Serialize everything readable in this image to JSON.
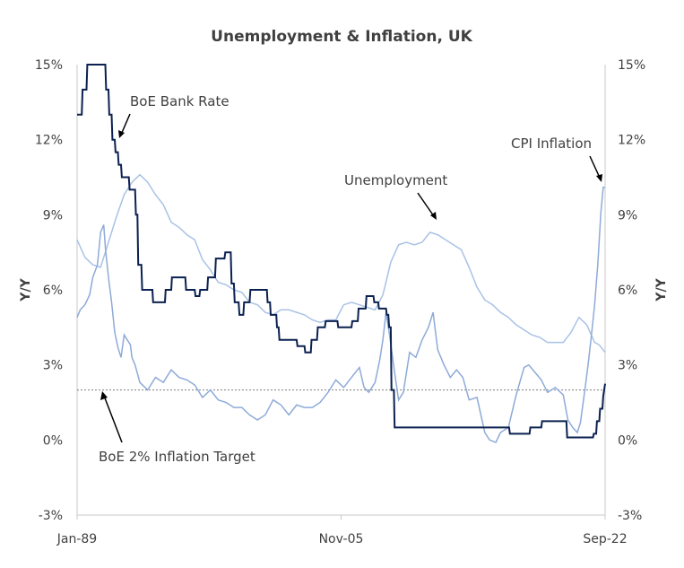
{
  "chart_data": {
    "type": "line",
    "title": "Unemployment & Inflation, UK",
    "ylabel_left": "Y/Y",
    "ylabel_right": "Y/Y",
    "ylim": [
      -3,
      15
    ],
    "yticks": [
      "-3%",
      "0%",
      "3%",
      "6%",
      "9%",
      "12%",
      "15%"
    ],
    "xticks": [
      "Jan-89",
      "Nov-05",
      "Sep-22"
    ],
    "xrange": [
      1989.0,
      2022.67
    ],
    "grid": false,
    "colors": {
      "bank_rate": "#0b2150",
      "cpi": "#8eaad8",
      "unemployment": "#a9c2e6",
      "target": "#7f7f7f",
      "axis": "#c8c8c8"
    },
    "annotations": [
      {
        "id": "bank_rate",
        "text": "BoE Bank Rate"
      },
      {
        "id": "cpi",
        "text": "CPI Inflation"
      },
      {
        "id": "unemployment",
        "text": "Unemployment"
      },
      {
        "id": "target",
        "text": "BoE 2% Inflation Target"
      }
    ],
    "series": [
      {
        "id": "bank_rate",
        "x": [
          1989.0,
          1989.3,
          1989.35,
          1989.6,
          1989.65,
          1989.9,
          1989.95,
          1990.8,
          1990.85,
          1991.0,
          1991.05,
          1991.2,
          1991.25,
          1991.4,
          1991.45,
          1991.6,
          1991.65,
          1991.8,
          1991.85,
          1992.3,
          1992.35,
          1992.7,
          1992.75,
          1992.85,
          1992.9,
          1993.1,
          1993.15,
          1993.8,
          1993.85,
          1994.6,
          1994.65,
          1995.0,
          1995.05,
          1995.9,
          1995.95,
          1996.5,
          1996.55,
          1996.8,
          1996.85,
          1997.3,
          1997.35,
          1997.8,
          1997.85,
          1998.4,
          1998.45,
          1998.8,
          1998.85,
          1999.0,
          1999.05,
          1999.3,
          1999.35,
          1999.6,
          1999.65,
          2000.0,
          2000.05,
          2001.1,
          2001.15,
          2001.3,
          2001.35,
          2001.7,
          2001.75,
          2001.85,
          2001.9,
          2003.0,
          2003.05,
          2003.5,
          2003.55,
          2003.9,
          2003.95,
          2004.3,
          2004.35,
          2004.8,
          2004.85,
          2005.6,
          2005.65,
          2006.5,
          2006.55,
          2006.9,
          2006.95,
          2007.4,
          2007.45,
          2007.9,
          2007.95,
          2008.2,
          2008.25,
          2008.7,
          2008.75,
          2008.85,
          2008.9,
          2009.0,
          2009.05,
          2009.2,
          2009.25,
          2016.55,
          2016.6,
          2017.85,
          2017.9,
          2018.6,
          2018.65,
          2020.2,
          2020.25,
          2021.9,
          2021.95,
          2022.1,
          2022.15,
          2022.3,
          2022.35,
          2022.5,
          2022.55,
          2022.67
        ],
        "values": [
          13.0,
          13.0,
          14.0,
          14.0,
          15.0,
          15.0,
          15.0,
          15.0,
          14.0,
          14.0,
          13.0,
          13.0,
          12.0,
          12.0,
          11.5,
          11.5,
          11.0,
          11.0,
          10.5,
          10.5,
          10.0,
          10.0,
          9.0,
          9.0,
          7.0,
          7.0,
          6.0,
          6.0,
          5.5,
          5.5,
          6.0,
          6.0,
          6.5,
          6.5,
          6.0,
          6.0,
          5.75,
          5.75,
          6.0,
          6.0,
          6.5,
          6.5,
          7.25,
          7.25,
          7.5,
          7.5,
          6.25,
          6.25,
          5.5,
          5.5,
          5.0,
          5.0,
          5.5,
          5.5,
          6.0,
          6.0,
          5.5,
          5.5,
          5.0,
          5.0,
          4.5,
          4.5,
          4.0,
          4.0,
          3.75,
          3.75,
          3.5,
          3.5,
          4.0,
          4.0,
          4.5,
          4.5,
          4.75,
          4.75,
          4.5,
          4.5,
          4.75,
          4.75,
          5.25,
          5.25,
          5.75,
          5.75,
          5.5,
          5.5,
          5.25,
          5.25,
          5.0,
          5.0,
          4.5,
          4.5,
          2.0,
          2.0,
          0.5,
          0.5,
          0.25,
          0.25,
          0.5,
          0.5,
          0.75,
          0.75,
          0.1,
          0.1,
          0.25,
          0.25,
          0.75,
          0.75,
          1.25,
          1.25,
          1.75,
          2.25
        ]
      },
      {
        "id": "cpi",
        "x": [
          1989.0,
          1989.2,
          1989.5,
          1989.8,
          1990.0,
          1990.3,
          1990.5,
          1990.7,
          1990.8,
          1991.0,
          1991.2,
          1991.4,
          1991.6,
          1991.8,
          1992.0,
          1992.2,
          1992.4,
          1992.5,
          1992.7,
          1993.0,
          1993.5,
          1994.0,
          1994.5,
          1995.0,
          1995.5,
          1996.0,
          1996.5,
          1997.0,
          1997.5,
          1998.0,
          1998.5,
          1999.0,
          1999.5,
          2000.0,
          2000.5,
          2001.0,
          2001.5,
          2002.0,
          2002.5,
          2003.0,
          2003.5,
          2004.0,
          2004.5,
          2005.0,
          2005.5,
          2006.0,
          2006.5,
          2007.0,
          2007.3,
          2007.6,
          2008.0,
          2008.3,
          2008.5,
          2008.7,
          2008.9,
          2009.2,
          2009.5,
          2009.8,
          2010.2,
          2010.6,
          2011.0,
          2011.4,
          2011.7,
          2012.0,
          2012.4,
          2012.8,
          2013.2,
          2013.6,
          2014.0,
          2014.5,
          2015.0,
          2015.3,
          2015.7,
          2016.0,
          2016.5,
          2017.0,
          2017.5,
          2017.8,
          2018.2,
          2018.6,
          2019.0,
          2019.5,
          2020.0,
          2020.3,
          2020.6,
          2020.9,
          2021.1,
          2021.4,
          2021.6,
          2021.8,
          2022.0,
          2022.2,
          2022.4,
          2022.55,
          2022.67
        ],
        "values": [
          4.9,
          5.2,
          5.4,
          5.8,
          6.5,
          7.0,
          8.3,
          8.6,
          7.7,
          6.5,
          5.5,
          4.3,
          3.7,
          3.3,
          4.2,
          4.0,
          3.8,
          3.3,
          3.0,
          2.3,
          2.0,
          2.5,
          2.3,
          2.8,
          2.5,
          2.4,
          2.2,
          1.7,
          2.0,
          1.6,
          1.5,
          1.3,
          1.3,
          1.0,
          0.8,
          1.0,
          1.6,
          1.4,
          1.0,
          1.4,
          1.3,
          1.3,
          1.5,
          1.9,
          2.4,
          2.1,
          2.5,
          2.9,
          2.1,
          1.9,
          2.3,
          3.2,
          4.0,
          5.1,
          4.3,
          2.9,
          1.6,
          1.9,
          3.5,
          3.3,
          4.0,
          4.5,
          5.1,
          3.6,
          3.0,
          2.5,
          2.8,
          2.5,
          1.6,
          1.7,
          0.3,
          0.0,
          -0.1,
          0.3,
          0.5,
          1.8,
          2.9,
          3.0,
          2.7,
          2.4,
          1.9,
          2.1,
          1.8,
          0.8,
          0.5,
          0.3,
          0.7,
          2.1,
          3.1,
          4.2,
          5.4,
          7.0,
          9.1,
          10.1,
          10.1
        ]
      },
      {
        "id": "unemployment",
        "x": [
          1989.0,
          1989.5,
          1990.0,
          1990.5,
          1991.0,
          1991.5,
          1992.0,
          1992.5,
          1993.0,
          1993.5,
          1994.0,
          1994.5,
          1995.0,
          1995.5,
          1996.0,
          1996.5,
          1997.0,
          1997.5,
          1998.0,
          1998.5,
          1999.0,
          1999.5,
          2000.0,
          2000.5,
          2001.0,
          2001.5,
          2002.0,
          2002.5,
          2003.0,
          2003.5,
          2004.0,
          2004.5,
          2005.0,
          2005.5,
          2006.0,
          2006.5,
          2007.0,
          2007.5,
          2008.0,
          2008.5,
          2009.0,
          2009.5,
          2010.0,
          2010.5,
          2011.0,
          2011.5,
          2012.0,
          2012.5,
          2013.0,
          2013.5,
          2014.0,
          2014.5,
          2015.0,
          2015.5,
          2016.0,
          2016.5,
          2017.0,
          2017.5,
          2018.0,
          2018.5,
          2019.0,
          2019.5,
          2020.0,
          2020.5,
          2021.0,
          2021.5,
          2022.0,
          2022.3,
          2022.67
        ],
        "values": [
          8.0,
          7.3,
          7.0,
          6.9,
          7.9,
          8.9,
          9.8,
          10.3,
          10.6,
          10.3,
          9.8,
          9.4,
          8.7,
          8.5,
          8.2,
          8.0,
          7.2,
          6.8,
          6.3,
          6.2,
          6.0,
          5.9,
          5.5,
          5.4,
          5.1,
          5.0,
          5.2,
          5.2,
          5.1,
          5.0,
          4.8,
          4.7,
          4.8,
          4.8,
          5.4,
          5.5,
          5.4,
          5.3,
          5.2,
          5.8,
          7.1,
          7.8,
          7.9,
          7.8,
          7.9,
          8.3,
          8.2,
          8.0,
          7.8,
          7.6,
          6.9,
          6.1,
          5.6,
          5.4,
          5.1,
          4.9,
          4.6,
          4.4,
          4.2,
          4.1,
          3.9,
          3.9,
          3.9,
          4.3,
          4.9,
          4.6,
          3.9,
          3.8,
          3.5
        ]
      },
      {
        "id": "target",
        "x": [
          1989.0,
          2022.67
        ],
        "values": [
          2.0,
          2.0
        ]
      }
    ]
  }
}
